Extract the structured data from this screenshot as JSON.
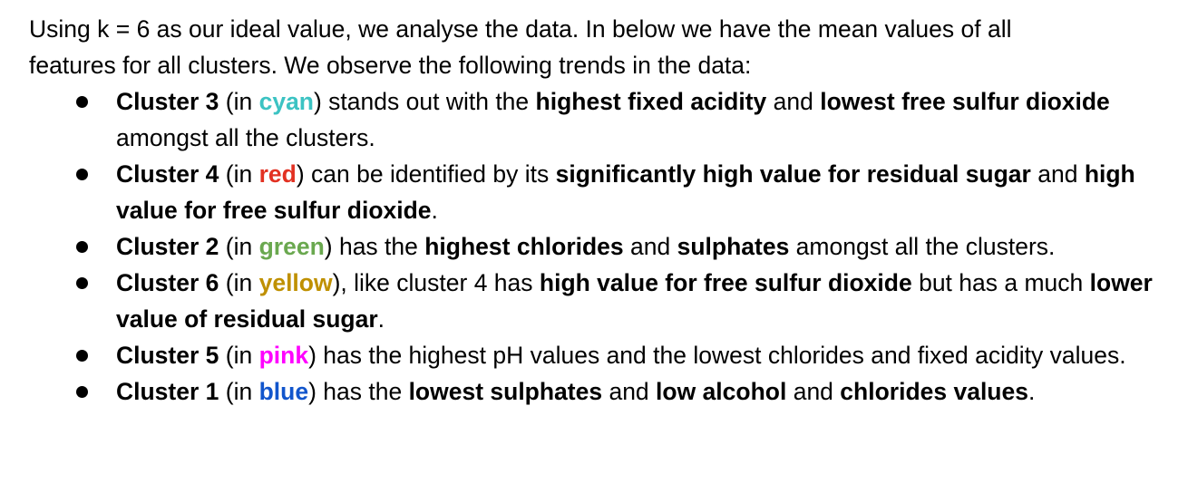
{
  "intro": {
    "line1": "Using k = 6 as our ideal value, we analyse the data. In below we have the mean values of all",
    "line2": "features for all clusters. We observe the following trends in the data:"
  },
  "colors": {
    "cyan": "#3cc3c3",
    "red": "#e23122",
    "green": "#6aa84f",
    "yellow": "#bf9000",
    "pink": "#ff00ff",
    "blue": "#1155cc"
  },
  "bullets": [
    {
      "cluster": "Cluster 3",
      "open": " (in ",
      "color_word": "cyan",
      "close": ") stands out with the ",
      "b1": "highest fixed acidity",
      "t1": " and ",
      "b2": "lowest free sulfur dioxide",
      "t2": " amongst all the clusters."
    },
    {
      "cluster": "Cluster 4",
      "open": " (in ",
      "color_word": "red",
      "close": ") can be identified by its ",
      "b1": "significantly high value for residual sugar",
      "t1": " and ",
      "b2": "high value for free sulfur dioxide",
      "t2": "."
    },
    {
      "cluster": "Cluster 2",
      "open": " (in ",
      "color_word": "green",
      "close": ") has the ",
      "b1": "highest chlorides",
      "t1": " and ",
      "b2": "sulphates",
      "t2": " amongst all the clusters."
    },
    {
      "cluster": "Cluster 6",
      "open": " (in ",
      "color_word": "yellow",
      "close": "), like cluster 4 has ",
      "b1": "high value for free sulfur dioxide",
      "t1": " but has a much ",
      "b2": "lower value of residual sugar",
      "t2": "."
    },
    {
      "cluster": "Cluster 5",
      "open": " (in ",
      "color_word": "pink",
      "close": ") has the highest pH values and the lowest chlorides and fixed acidity values."
    },
    {
      "cluster": "Cluster 1",
      "open": " (in ",
      "color_word": "blue",
      "close": ") has the ",
      "b1": "lowest sulphates",
      "t1": " and ",
      "b2": "low alcohol",
      "t2": " and ",
      "b3": "chlorides values",
      "t3": "."
    }
  ]
}
